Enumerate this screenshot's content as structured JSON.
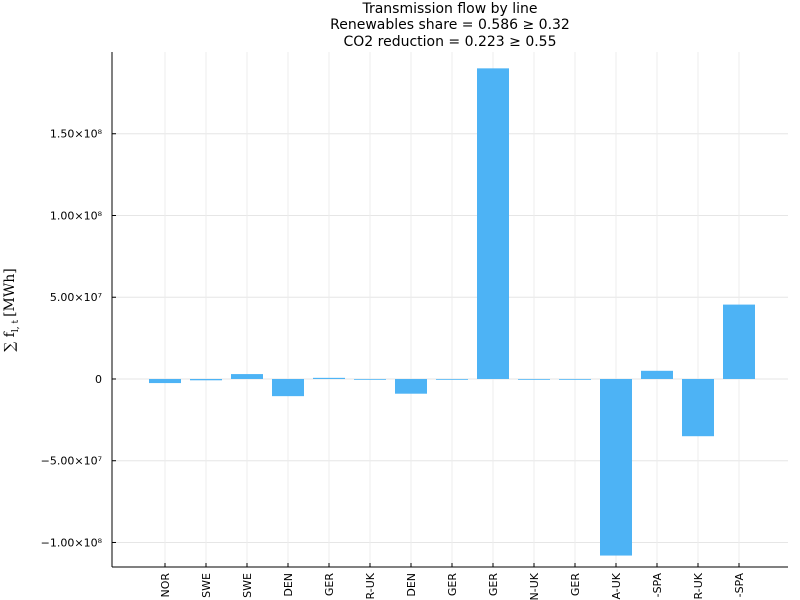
{
  "chart_data": {
    "type": "bar",
    "title_lines": [
      "Transmission flow by line",
      "Renewables share = 0.586 ≥ 0.32",
      "CO2 reduction = 0.223 ≥ 0.55"
    ],
    "ylabel": "∑ f",
    "ylabel_sub": "t",
    "ylabel_index": "l, t",
    "ylabel_unit": "[MWh]",
    "categories": [
      "NOR",
      "SWE",
      "SWE",
      "DEN",
      "GER",
      "R-UK",
      "DEN",
      "GER",
      "GER",
      "N-UK",
      "GER",
      "A-UK",
      "-SPA",
      "R-UK",
      "-SPA"
    ],
    "values": [
      -2500000,
      -800000,
      3000000,
      -10500000,
      700000,
      0,
      -9000000,
      0,
      190000000,
      0,
      0,
      -108000000,
      5000000,
      -35000000,
      45500000
    ],
    "ylim": [
      -115000000,
      200000000
    ],
    "yticks": [
      -100000000,
      -50000000,
      0,
      50000000,
      100000000,
      150000000
    ],
    "ytick_labels": [
      "−1.00×10⁸",
      "−5.00×10⁷",
      "0",
      "5.00×10⁷",
      "1.00×10⁸",
      "1.50×10⁸"
    ],
    "grid": true,
    "legend": "none",
    "bar_color": "#4db3f5"
  }
}
